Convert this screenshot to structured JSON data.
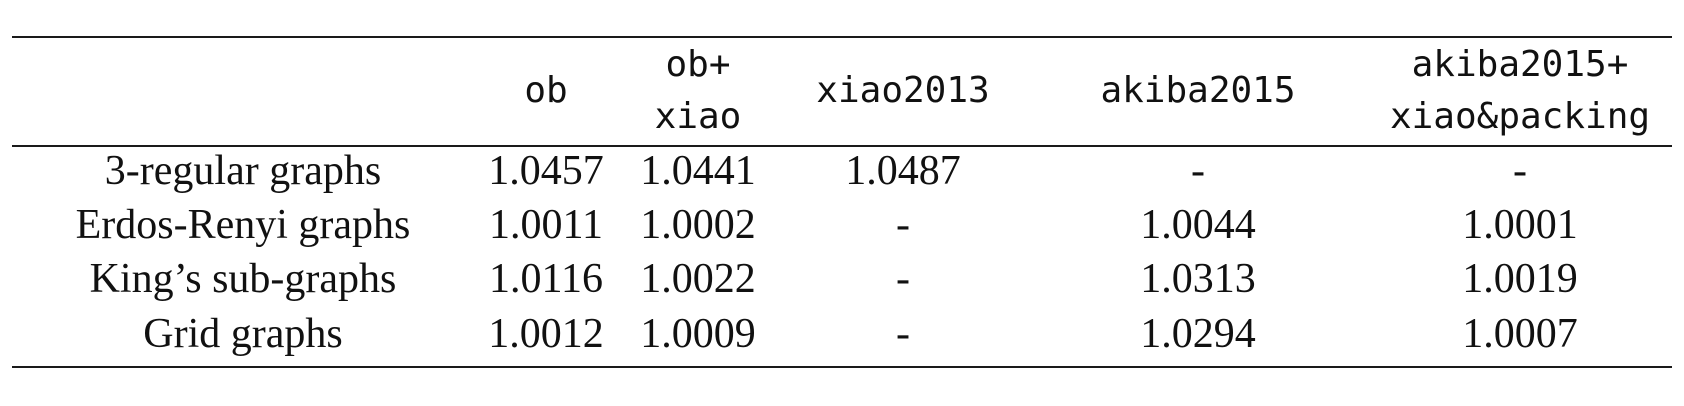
{
  "table": {
    "columns": [
      {
        "lines": [
          ""
        ]
      },
      {
        "lines": [
          "ob"
        ]
      },
      {
        "lines": [
          "ob+",
          "xiao"
        ]
      },
      {
        "lines": [
          "xiao2013"
        ]
      },
      {
        "lines": [
          "akiba2015"
        ]
      },
      {
        "lines": [
          "akiba2015+",
          "xiao&packing"
        ]
      }
    ],
    "rows": [
      {
        "label": "3-regular graphs",
        "cells": [
          "1.0457",
          "1.0441",
          "1.0487",
          "-",
          "-"
        ]
      },
      {
        "label": "Erdos-Renyi graphs",
        "cells": [
          "1.0011",
          "1.0002",
          "-",
          "1.0044",
          "1.0001"
        ]
      },
      {
        "label": "King’s sub-graphs",
        "cells": [
          "1.0116",
          "1.0022",
          "-",
          "1.0313",
          "1.0019"
        ]
      },
      {
        "label": "Grid graphs",
        "cells": [
          "1.0012",
          "1.0009",
          "-",
          "1.0294",
          "1.0007"
        ]
      }
    ]
  }
}
